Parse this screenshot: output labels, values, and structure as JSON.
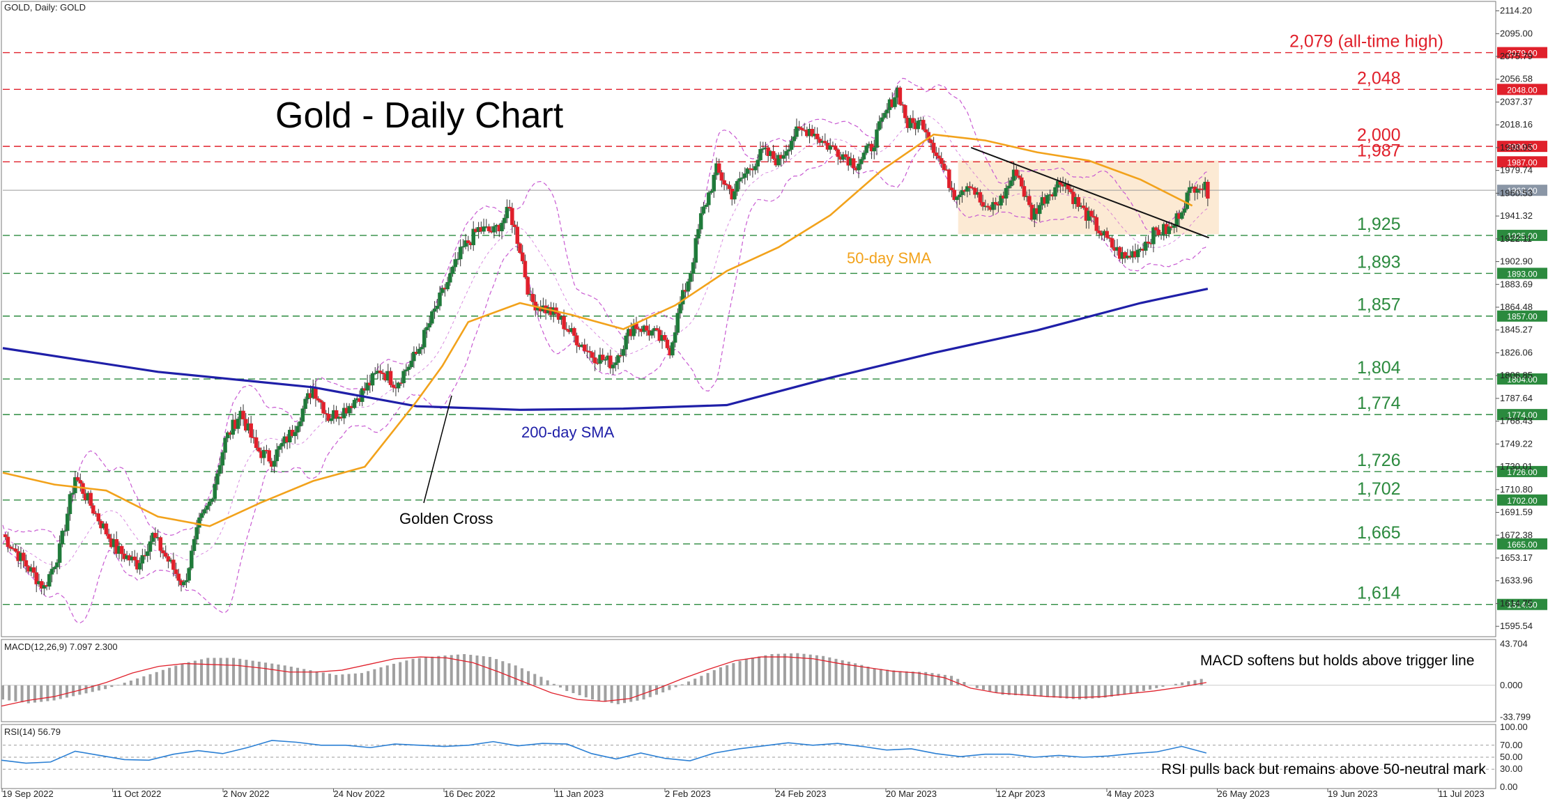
{
  "symbol_label": "GOLD, Daily:  GOLD",
  "title": "Gold - Daily Chart",
  "colors": {
    "bull": "#1f7a3a",
    "bear": "#e0202b",
    "sma50": "#f2a21b",
    "sma200": "#1f1fa8",
    "bollinger": "#c85ad2",
    "resistance": "#e0202b",
    "support": "#2b8a3e",
    "rect_fill": "#fbe3c6",
    "macd_hist": "#a0a0a0",
    "macd_signal": "#e0202b",
    "rsi": "#2a7fd4"
  },
  "annotations": {
    "sma50_label": "50-day SMA",
    "sma200_label": "200-day SMA",
    "golden_cross": "Golden Cross",
    "macd_note": "MACD softens but holds above trigger line",
    "rsi_note": "RSI pulls back but remains above 50-neutral mark"
  },
  "macd_header": "MACD(12,26,9) 7.097 2.300",
  "rsi_header": "RSI(14) 56.79",
  "chart_data": {
    "type": "candlestick",
    "price_axis_ticks": [
      "2114.20",
      "2095.00",
      "2075.79",
      "2056.58",
      "2037.37",
      "2018.16",
      "1998.95",
      "1979.74",
      "1960.53",
      "1941.32",
      "1922.11",
      "1902.90",
      "1883.69",
      "1864.48",
      "1845.27",
      "1826.06",
      "1806.85",
      "1787.64",
      "1768.43",
      "1749.22",
      "1730.01",
      "1710.80",
      "1691.59",
      "1672.38",
      "1653.17",
      "1633.96",
      "1614.75",
      "1595.54"
    ],
    "date_labels": [
      "19 Sep 2022",
      "11 Oct 2022",
      "2 Nov 2022",
      "24 Nov 2022",
      "16 Dec 2022",
      "11 Jan 2023",
      "2 Feb 2023",
      "24 Feb 2023",
      "20 Mar 2023",
      "12 Apr 2023",
      "4 May 2023",
      "26 May 2023",
      "19 Jun 2023",
      "11 Jul 2023"
    ],
    "levels": [
      {
        "value": 2079,
        "label": "2,079 (all-time high)",
        "tag": "2079.00",
        "kind": "resistance"
      },
      {
        "value": 2048,
        "label": "2,048",
        "tag": "2048.00",
        "kind": "resistance"
      },
      {
        "value": 2000,
        "label": "2,000",
        "tag": "2000.00",
        "kind": "resistance"
      },
      {
        "value": 1987,
        "label": "1,987",
        "tag": "1987.00",
        "kind": "resistance"
      },
      {
        "value": 1925,
        "label": "1,925",
        "tag": "1925.00",
        "kind": "support"
      },
      {
        "value": 1893,
        "label": "1,893",
        "tag": "1893.00",
        "kind": "support"
      },
      {
        "value": 1857,
        "label": "1,857",
        "tag": "1857.00",
        "kind": "support"
      },
      {
        "value": 1804,
        "label": "1,804",
        "tag": "1804.00",
        "kind": "support"
      },
      {
        "value": 1774,
        "label": "1,774",
        "tag": "1774.00",
        "kind": "support"
      },
      {
        "value": 1726,
        "label": "1,726",
        "tag": "1726.00",
        "kind": "support"
      },
      {
        "value": 1702,
        "label": "1,702",
        "tag": "1702.00",
        "kind": "support"
      },
      {
        "value": 1665,
        "label": "1,665",
        "tag": "1665.00",
        "kind": "support"
      },
      {
        "value": 1614,
        "label": "1,614",
        "tag": "1614.00",
        "kind": "support"
      }
    ],
    "current_price": "1963.00",
    "ylim": [
      1588,
      2121
    ],
    "close_path": [
      [
        0,
        1673
      ],
      [
        8,
        1650
      ],
      [
        16,
        1628
      ],
      [
        22,
        1660
      ],
      [
        28,
        1722
      ],
      [
        36,
        1690
      ],
      [
        44,
        1660
      ],
      [
        52,
        1648
      ],
      [
        58,
        1672
      ],
      [
        64,
        1651
      ],
      [
        70,
        1630
      ],
      [
        76,
        1682
      ],
      [
        80,
        1700
      ],
      [
        86,
        1752
      ],
      [
        92,
        1776
      ],
      [
        98,
        1745
      ],
      [
        104,
        1736
      ],
      [
        112,
        1760
      ],
      [
        120,
        1797
      ],
      [
        126,
        1772
      ],
      [
        132,
        1778
      ],
      [
        140,
        1795
      ],
      [
        146,
        1812
      ],
      [
        152,
        1800
      ],
      [
        160,
        1825
      ],
      [
        166,
        1856
      ],
      [
        170,
        1876
      ],
      [
        178,
        1914
      ],
      [
        184,
        1930
      ],
      [
        190,
        1928
      ],
      [
        196,
        1946
      ],
      [
        200,
        1914
      ],
      [
        204,
        1870
      ],
      [
        208,
        1865
      ],
      [
        214,
        1858
      ],
      [
        220,
        1842
      ],
      [
        228,
        1824
      ],
      [
        236,
        1817
      ],
      [
        244,
        1850
      ],
      [
        252,
        1842
      ],
      [
        258,
        1829
      ],
      [
        262,
        1866
      ],
      [
        266,
        1895
      ],
      [
        270,
        1940
      ],
      [
        276,
        1980
      ],
      [
        282,
        1960
      ],
      [
        288,
        1980
      ],
      [
        294,
        1995
      ],
      [
        300,
        1988
      ],
      [
        306,
        2010
      ],
      [
        312,
        2015
      ],
      [
        318,
        2002
      ],
      [
        324,
        1995
      ],
      [
        330,
        1985
      ],
      [
        336,
        2000
      ],
      [
        342,
        2030
      ],
      [
        346,
        2048
      ],
      [
        350,
        2018
      ],
      [
        356,
        2020
      ],
      [
        362,
        1990
      ],
      [
        368,
        1960
      ],
      [
        374,
        1970
      ],
      [
        380,
        1945
      ],
      [
        386,
        1955
      ],
      [
        392,
        1980
      ],
      [
        398,
        1942
      ],
      [
        404,
        1960
      ],
      [
        410,
        1972
      ],
      [
        416,
        1950
      ],
      [
        422,
        1935
      ],
      [
        428,
        1918
      ],
      [
        434,
        1905
      ],
      [
        440,
        1915
      ],
      [
        446,
        1928
      ],
      [
        452,
        1930
      ],
      [
        458,
        1958
      ],
      [
        462,
        1970
      ],
      [
        466,
        1962
      ]
    ],
    "sma50_path": [
      [
        0,
        1725
      ],
      [
        20,
        1715
      ],
      [
        40,
        1710
      ],
      [
        60,
        1688
      ],
      [
        80,
        1680
      ],
      [
        100,
        1700
      ],
      [
        120,
        1718
      ],
      [
        140,
        1730
      ],
      [
        160,
        1785
      ],
      [
        170,
        1815
      ],
      [
        180,
        1852
      ],
      [
        200,
        1868
      ],
      [
        220,
        1858
      ],
      [
        240,
        1846
      ],
      [
        260,
        1866
      ],
      [
        280,
        1895
      ],
      [
        300,
        1915
      ],
      [
        320,
        1942
      ],
      [
        340,
        1980
      ],
      [
        360,
        2010
      ],
      [
        380,
        2005
      ],
      [
        400,
        1995
      ],
      [
        420,
        1988
      ],
      [
        440,
        1972
      ],
      [
        460,
        1950
      ]
    ],
    "sma200_path": [
      [
        0,
        1830
      ],
      [
        60,
        1810
      ],
      [
        120,
        1797
      ],
      [
        160,
        1781
      ],
      [
        200,
        1778
      ],
      [
        240,
        1779
      ],
      [
        280,
        1782
      ],
      [
        320,
        1805
      ],
      [
        360,
        1826
      ],
      [
        400,
        1845
      ],
      [
        440,
        1868
      ],
      [
        466,
        1880
      ]
    ],
    "macd_ylim": [
      -37,
      47
    ],
    "macd_axis_ticks": [
      "43.704",
      "0.000",
      "-33.799"
    ],
    "macd_hist": [
      -15,
      -19,
      -16,
      -10,
      -4,
      5,
      14,
      23,
      29,
      29,
      25,
      21,
      16,
      11,
      13,
      21,
      28,
      31,
      33,
      30,
      21,
      9,
      -6,
      -15,
      -20,
      -15,
      -5,
      7,
      19,
      28,
      33,
      34,
      31,
      25,
      18,
      15,
      14,
      10,
      -3,
      -10,
      -11,
      -13,
      -15,
      -13,
      -9,
      -3,
      3,
      8
    ],
    "macd_signal": [
      -22,
      -16,
      -12,
      -5,
      3,
      13,
      20,
      23,
      22,
      21,
      18,
      14,
      14,
      16,
      22,
      28,
      30,
      29,
      24,
      14,
      3,
      -8,
      -15,
      -17,
      -14,
      -4,
      7,
      17,
      26,
      30,
      30,
      28,
      23,
      19,
      15,
      13,
      8,
      -3,
      -8,
      -10,
      -12,
      -13,
      -12,
      -9,
      -6,
      -2,
      3
    ],
    "rsi_ylim": [
      0,
      100
    ],
    "rsi_axis_ticks": [
      "100.00",
      "70.00",
      "50.00",
      "30.00",
      "0.00"
    ],
    "rsi_values": [
      45,
      40,
      42,
      60,
      53,
      46,
      45,
      55,
      61,
      56,
      66,
      78,
      75,
      70,
      70,
      66,
      72,
      70,
      68,
      70,
      76,
      69,
      73,
      72,
      56,
      47,
      57,
      48,
      44,
      57,
      64,
      69,
      74,
      70,
      73,
      68,
      62,
      64,
      56,
      51,
      55,
      55,
      50,
      53,
      50,
      52,
      56,
      59,
      68,
      57
    ]
  }
}
